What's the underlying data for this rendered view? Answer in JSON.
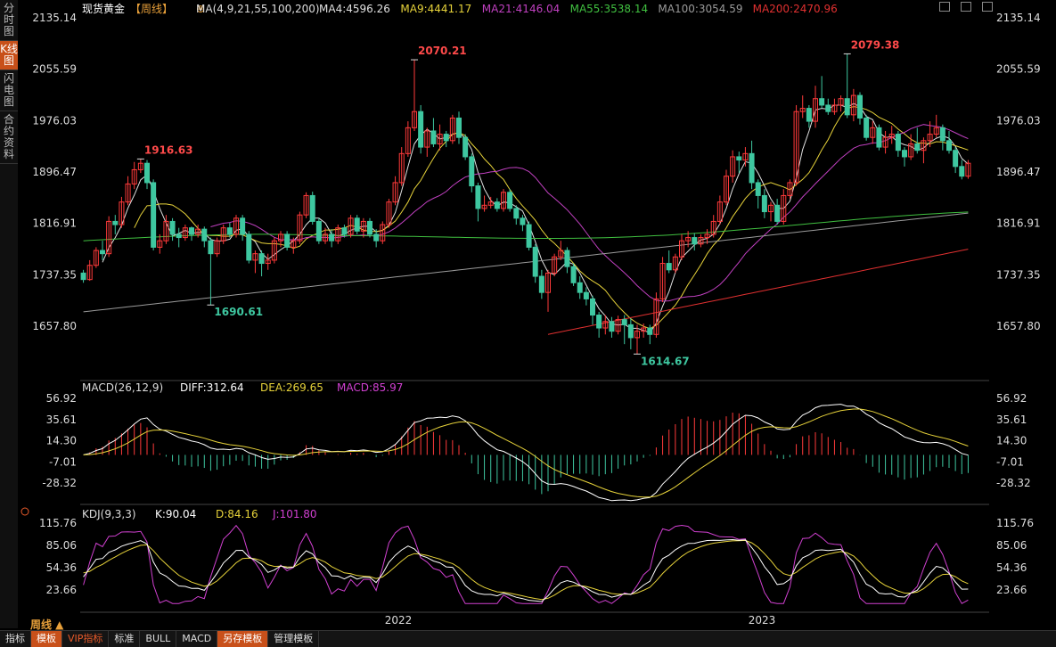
{
  "left_tabs": [
    "分时图",
    "K线图",
    "闪电图",
    "合约资料"
  ],
  "header": {
    "name": "现货黄金",
    "period_tag": "【周线】",
    "ma_label": "MA(4,9,21,55,100,200)",
    "ma_items": [
      {
        "text": "MA4:4596.26",
        "color": "#e0e0e0"
      },
      {
        "text": "MA9:4441.17",
        "color": "#e6d23a"
      },
      {
        "text": "MA21:4146.04",
        "color": "#c040c0"
      },
      {
        "text": "MA55:3538.14",
        "color": "#40c040"
      },
      {
        "text": "MA100:3054.59",
        "color": "#9a9a9a"
      },
      {
        "text": "MA200:2470.96",
        "color": "#e03030"
      }
    ]
  },
  "price_axis": [
    "2135.14",
    "2055.59",
    "1976.03",
    "1896.47",
    "1816.91",
    "1737.35",
    "1657.80"
  ],
  "annotations": [
    "1916.63",
    "1690.61",
    "2070.21",
    "1614.67",
    "2079.38"
  ],
  "macd": {
    "header": "MACD(26,12,9)",
    "diff": "DIFF:312.64",
    "dea": "DEA:269.65",
    "macd": "MACD:85.97",
    "axis": [
      "56.92",
      "35.61",
      "14.30",
      "-7.01",
      "-28.32"
    ]
  },
  "kdj": {
    "header": "KDJ(9,3,3)",
    "k": "K:90.04",
    "d": "D:84.16",
    "j": "J:101.80",
    "axis": [
      "115.76",
      "85.06",
      "54.36",
      "23.66"
    ]
  },
  "time_axis": [
    "2022",
    "2023"
  ],
  "period_selector": "周线 ▲",
  "bottom_tabs": [
    "指标",
    "模板",
    "VIP指标",
    "标准",
    "BULL",
    "MACD",
    "另存模板",
    "管理模板"
  ],
  "colors": {
    "up": "#ff3a3a",
    "down": "#3ec7a0",
    "bg": "#000000"
  },
  "chart_data": {
    "type": "candlestick",
    "period": "weekly",
    "x_ticks": [
      "2022",
      "2023"
    ],
    "ylim": [
      1614.67,
      2135.14
    ],
    "key_points": [
      {
        "label": "1916.63",
        "value": 1916.63
      },
      {
        "label": "1690.61",
        "value": 1690.61
      },
      {
        "label": "2070.21",
        "value": 2070.21
      },
      {
        "label": "1614.67",
        "value": 1614.67
      },
      {
        "label": "2079.38",
        "value": 2079.38
      }
    ],
    "candles": [
      [
        1740,
        1730,
        1745,
        1725
      ],
      [
        1730,
        1752,
        1760,
        1728
      ],
      [
        1752,
        1775,
        1780,
        1748
      ],
      [
        1775,
        1770,
        1790,
        1760
      ],
      [
        1770,
        1820,
        1828,
        1765
      ],
      [
        1820,
        1815,
        1830,
        1800
      ],
      [
        1815,
        1850,
        1858,
        1810
      ],
      [
        1850,
        1878,
        1890,
        1845
      ],
      [
        1878,
        1900,
        1912,
        1870
      ],
      [
        1900,
        1910,
        1916.63,
        1895
      ],
      [
        1910,
        1880,
        1915,
        1870
      ],
      [
        1880,
        1780,
        1885,
        1775
      ],
      [
        1780,
        1790,
        1800,
        1770
      ],
      [
        1790,
        1820,
        1830,
        1785
      ],
      [
        1820,
        1800,
        1825,
        1790
      ],
      [
        1800,
        1795,
        1810,
        1780
      ],
      [
        1795,
        1810,
        1815,
        1790
      ],
      [
        1810,
        1800,
        1812,
        1790
      ],
      [
        1800,
        1808,
        1815,
        1795
      ],
      [
        1808,
        1790,
        1812,
        1780
      ],
      [
        1790,
        1770,
        1795,
        1690.61
      ],
      [
        1770,
        1790,
        1795,
        1765
      ],
      [
        1790,
        1810,
        1815,
        1785
      ],
      [
        1810,
        1800,
        1818,
        1795
      ],
      [
        1800,
        1825,
        1830,
        1795
      ],
      [
        1825,
        1800,
        1830,
        1790
      ],
      [
        1800,
        1760,
        1805,
        1755
      ],
      [
        1760,
        1770,
        1775,
        1740
      ],
      [
        1770,
        1755,
        1775,
        1735
      ],
      [
        1755,
        1760,
        1770,
        1745
      ],
      [
        1760,
        1790,
        1795,
        1755
      ],
      [
        1790,
        1800,
        1805,
        1780
      ],
      [
        1800,
        1780,
        1805,
        1775
      ],
      [
        1780,
        1790,
        1795,
        1770
      ],
      [
        1790,
        1830,
        1835,
        1785
      ],
      [
        1830,
        1860,
        1865,
        1825
      ],
      [
        1860,
        1820,
        1866,
        1815
      ],
      [
        1820,
        1790,
        1825,
        1785
      ],
      [
        1790,
        1800,
        1810,
        1785
      ],
      [
        1800,
        1790,
        1808,
        1780
      ],
      [
        1790,
        1810,
        1815,
        1785
      ],
      [
        1810,
        1800,
        1815,
        1795
      ],
      [
        1800,
        1825,
        1830,
        1795
      ],
      [
        1825,
        1805,
        1830,
        1800
      ],
      [
        1805,
        1820,
        1825,
        1795
      ],
      [
        1820,
        1800,
        1825,
        1795
      ],
      [
        1800,
        1790,
        1808,
        1780
      ],
      [
        1790,
        1815,
        1820,
        1785
      ],
      [
        1815,
        1850,
        1855,
        1810
      ],
      [
        1850,
        1880,
        1890,
        1845
      ],
      [
        1880,
        1925,
        1935,
        1875
      ],
      [
        1925,
        1965,
        1975,
        1920
      ],
      [
        1965,
        1990,
        2070.21,
        1960
      ],
      [
        1990,
        1935,
        2000,
        1925
      ],
      [
        1935,
        1960,
        1965,
        1920
      ],
      [
        1960,
        1940,
        1980,
        1935
      ],
      [
        1940,
        1955,
        1970,
        1930
      ],
      [
        1955,
        1945,
        1960,
        1935
      ],
      [
        1945,
        1980,
        1985,
        1940
      ],
      [
        1980,
        1950,
        1990,
        1940
      ],
      [
        1950,
        1920,
        1955,
        1915
      ],
      [
        1920,
        1875,
        1925,
        1865
      ],
      [
        1875,
        1840,
        1880,
        1820
      ],
      [
        1840,
        1845,
        1860,
        1835
      ],
      [
        1845,
        1850,
        1858,
        1840
      ],
      [
        1850,
        1840,
        1856,
        1835
      ],
      [
        1840,
        1865,
        1870,
        1835
      ],
      [
        1865,
        1840,
        1870,
        1835
      ],
      [
        1840,
        1825,
        1845,
        1815
      ],
      [
        1825,
        1815,
        1830,
        1805
      ],
      [
        1815,
        1780,
        1820,
        1775
      ],
      [
        1780,
        1735,
        1785,
        1725
      ],
      [
        1735,
        1710,
        1745,
        1700
      ],
      [
        1710,
        1740,
        1745,
        1680
      ],
      [
        1740,
        1765,
        1770,
        1735
      ],
      [
        1765,
        1775,
        1790,
        1760
      ],
      [
        1775,
        1750,
        1780,
        1740
      ],
      [
        1750,
        1725,
        1755,
        1720
      ],
      [
        1725,
        1710,
        1735,
        1700
      ],
      [
        1710,
        1700,
        1718,
        1690
      ],
      [
        1700,
        1675,
        1705,
        1660
      ],
      [
        1675,
        1655,
        1680,
        1640
      ],
      [
        1655,
        1665,
        1675,
        1645
      ],
      [
        1665,
        1650,
        1672,
        1640
      ],
      [
        1650,
        1668,
        1674,
        1645
      ],
      [
        1668,
        1660,
        1675,
        1630
      ],
      [
        1660,
        1640,
        1670,
        1622
      ],
      [
        1640,
        1650,
        1660,
        1614.67
      ],
      [
        1650,
        1655,
        1662,
        1640
      ],
      [
        1655,
        1645,
        1660,
        1630
      ],
      [
        1645,
        1700,
        1710,
        1640
      ],
      [
        1700,
        1755,
        1765,
        1695
      ],
      [
        1755,
        1745,
        1775,
        1740
      ],
      [
        1745,
        1765,
        1770,
        1740
      ],
      [
        1765,
        1790,
        1800,
        1760
      ],
      [
        1790,
        1795,
        1805,
        1780
      ],
      [
        1795,
        1785,
        1802,
        1775
      ],
      [
        1785,
        1795,
        1800,
        1780
      ],
      [
        1795,
        1800,
        1808,
        1785
      ],
      [
        1800,
        1820,
        1830,
        1795
      ],
      [
        1820,
        1850,
        1860,
        1815
      ],
      [
        1850,
        1890,
        1900,
        1845
      ],
      [
        1890,
        1920,
        1930,
        1880
      ],
      [
        1920,
        1915,
        1928,
        1895
      ],
      [
        1915,
        1925,
        1935,
        1905
      ],
      [
        1925,
        1880,
        1945,
        1870
      ],
      [
        1880,
        1860,
        1885,
        1840
      ],
      [
        1860,
        1835,
        1870,
        1825
      ],
      [
        1835,
        1845,
        1850,
        1820
      ],
      [
        1845,
        1820,
        1855,
        1815
      ],
      [
        1820,
        1860,
        1870,
        1815
      ],
      [
        1860,
        1880,
        1885,
        1855
      ],
      [
        1880,
        1990,
        2000,
        1875
      ],
      [
        1990,
        1995,
        2015,
        1980
      ],
      [
        1995,
        1975,
        2000,
        1965
      ],
      [
        1975,
        2010,
        2030,
        1965
      ],
      [
        2010,
        2000,
        2045,
        1995
      ],
      [
        2000,
        1990,
        2010,
        1985
      ],
      [
        1990,
        2000,
        2010,
        1985
      ],
      [
        2000,
        2010,
        2015,
        1990
      ],
      [
        2010,
        1985,
        2079.38,
        1980
      ],
      [
        1985,
        2015,
        2025,
        1975
      ],
      [
        2015,
        1980,
        2020,
        1970
      ],
      [
        1980,
        1950,
        1985,
        1945
      ],
      [
        1950,
        1965,
        1975,
        1940
      ],
      [
        1965,
        1935,
        1970,
        1930
      ],
      [
        1935,
        1950,
        1960,
        1925
      ],
      [
        1950,
        1955,
        1968,
        1940
      ],
      [
        1955,
        1930,
        1960,
        1920
      ],
      [
        1930,
        1920,
        1935,
        1905
      ],
      [
        1920,
        1940,
        1955,
        1915
      ],
      [
        1940,
        1930,
        1965,
        1925
      ],
      [
        1930,
        1945,
        1950,
        1910
      ],
      [
        1945,
        1955,
        1975,
        1935
      ],
      [
        1955,
        1965,
        1985,
        1950
      ],
      [
        1965,
        1945,
        1970,
        1930
      ],
      [
        1945,
        1930,
        1960,
        1925
      ],
      [
        1930,
        1905,
        1935,
        1895
      ],
      [
        1905,
        1890,
        1915,
        1885
      ],
      [
        1890,
        1910,
        1915,
        1886
      ]
    ]
  }
}
